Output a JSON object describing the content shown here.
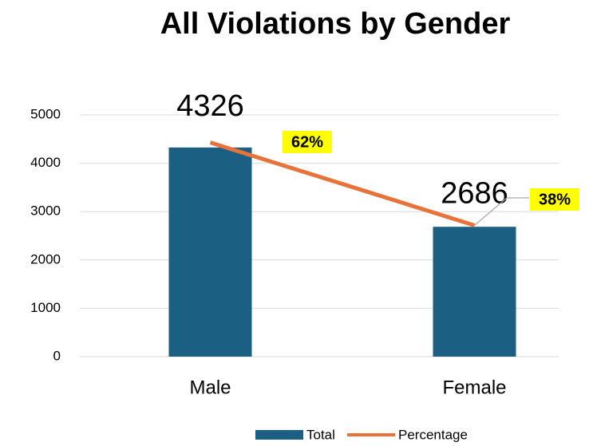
{
  "chart_data": {
    "type": "bar",
    "title": "All Violations by  Gender",
    "categories": [
      "Male",
      "Female"
    ],
    "series": [
      {
        "name": "Total",
        "type": "bar",
        "color": "#1b5f82",
        "values": [
          4326,
          2686
        ]
      },
      {
        "name": "Percentage",
        "type": "line",
        "axis": "y2",
        "color": "#e8733a",
        "values": [
          62,
          38
        ],
        "value_labels": [
          "62%",
          "38%"
        ]
      }
    ],
    "ylim": [
      0,
      5000
    ],
    "yticks": [
      0,
      1000,
      2000,
      3000,
      4000,
      5000
    ],
    "y2lim": [
      0,
      70
    ],
    "grid": true,
    "legend": "bottom"
  }
}
